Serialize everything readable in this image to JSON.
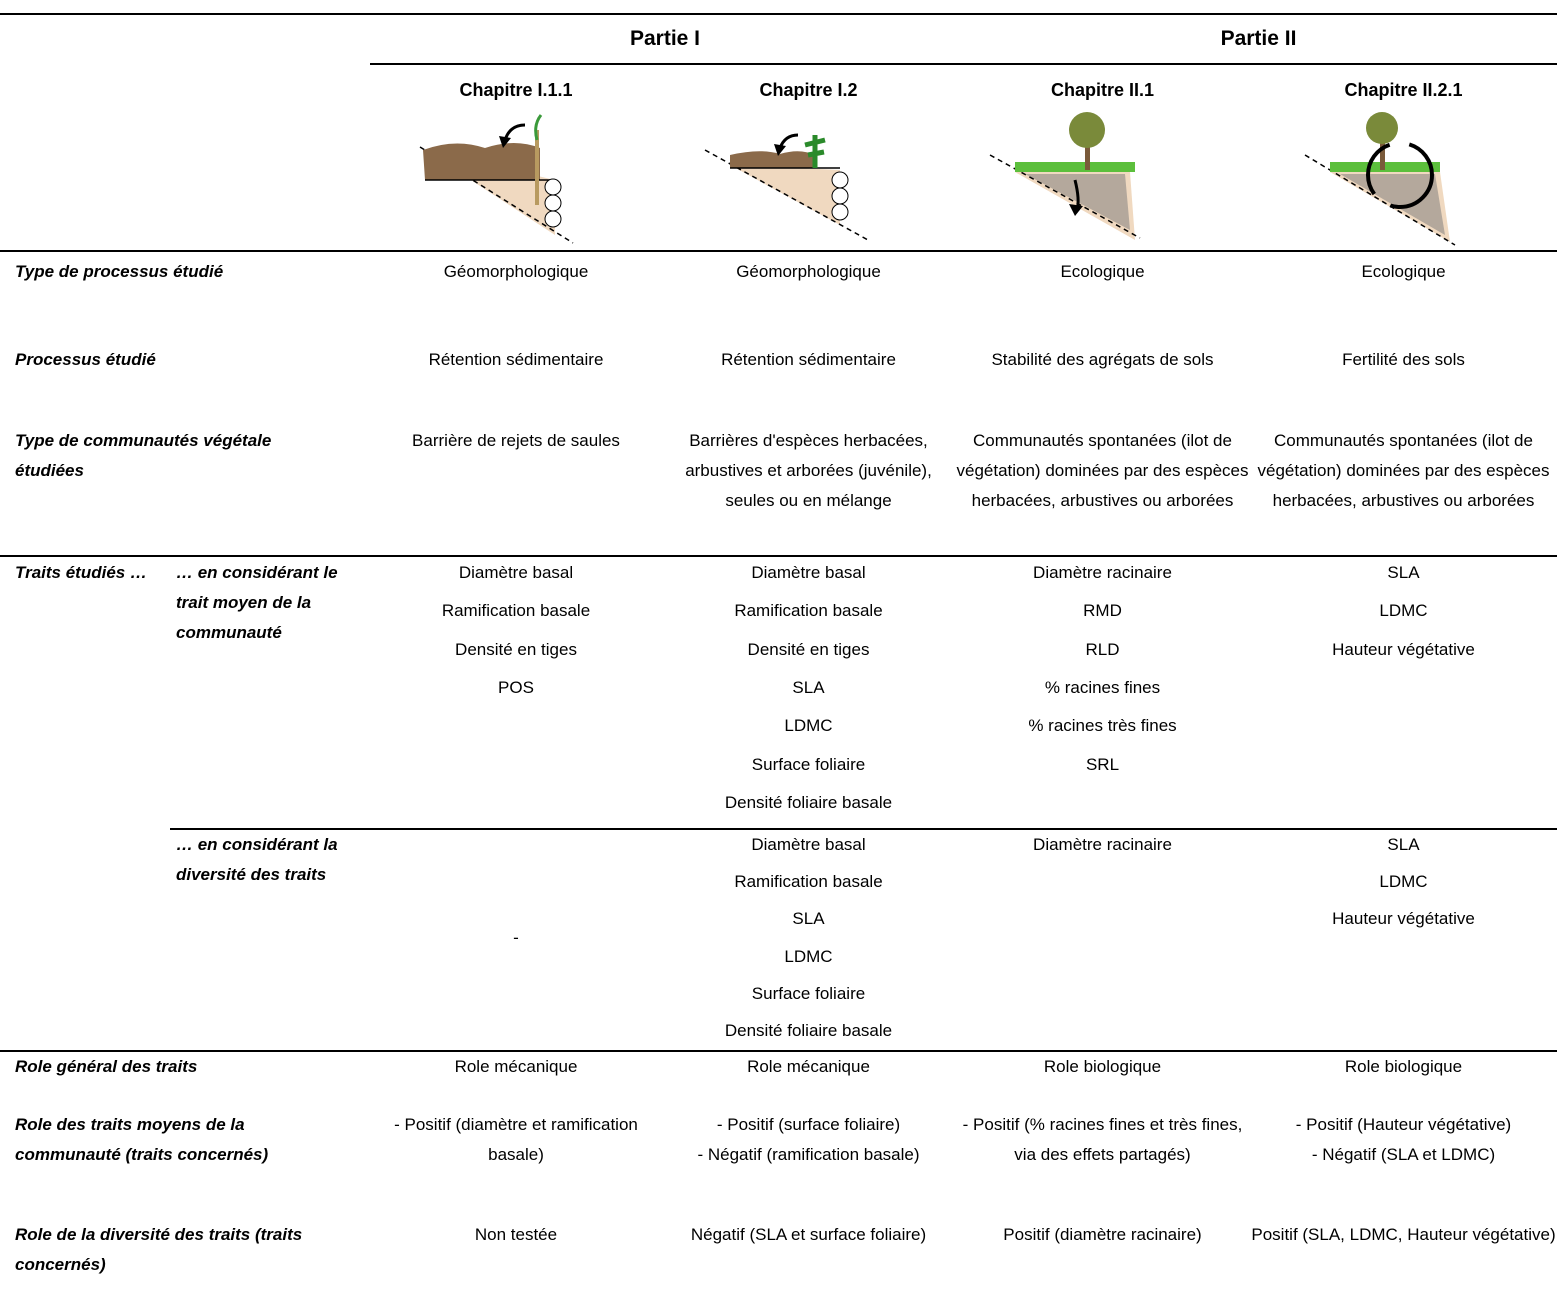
{
  "header": {
    "parts": [
      "Partie I",
      "Partie II"
    ],
    "chapters": [
      "Chapitre I.1.1",
      "Chapitre I.2",
      "Chapitre II.1",
      "Chapitre II.2.1"
    ]
  },
  "rows": [
    {
      "label": "Type de processus étudié",
      "cells": [
        "Géomorphologique",
        "Géomorphologique",
        "Ecologique",
        "Ecologique"
      ]
    },
    {
      "label": "Processus étudié",
      "cells": [
        "Rétention sédimentaire",
        "Rétention sédimentaire",
        "Stabilité des agrégats de sols",
        "Fertilité des sols"
      ]
    },
    {
      "label": "Type de communautés végétale étudiées",
      "cells": [
        "Barrière de rejets de saules",
        "Barrières d'espèces herbacées, arbustives et arborées (juvénile), seules ou en mélange",
        "Communautés spontanées (ilot de végétation) dominées par des espèces herbacées, arbustives ou arborées",
        "Communautés spontanées (ilot de végétation) dominées par des espèces herbacées, arbustives ou arborées"
      ]
    }
  ],
  "traits": {
    "label": "Traits étudiés …",
    "groups": [
      {
        "label": "… en considérant le trait moyen de la communauté",
        "cells": [
          [
            "Diamètre basal",
            "Ramification basale",
            "Densité en tiges",
            "POS"
          ],
          [
            "Diamètre basal",
            "Ramification basale",
            "Densité en tiges",
            "SLA",
            "LDMC",
            "Surface foliaire",
            "Densité foliaire basale"
          ],
          [
            "Diamètre racinaire",
            "RMD",
            "RLD",
            "% racines fines",
            "% racines très fines",
            "SRL"
          ],
          [
            "SLA",
            "LDMC",
            "Hauteur végétative"
          ]
        ]
      },
      {
        "label": "… en considérant la diversité des traits",
        "cells": [
          [
            "-"
          ],
          [
            "Diamètre basal",
            "Ramification basale",
            "SLA",
            "LDMC",
            "Surface foliaire",
            "Densité foliaire basale"
          ],
          [
            "Diamètre racinaire"
          ],
          [
            "SLA",
            "LDMC",
            "Hauteur végétative"
          ]
        ]
      }
    ]
  },
  "roles": [
    {
      "label": "Role général des traits",
      "cells": [
        "Role mécanique",
        "Role mécanique",
        "Role biologique",
        "Role biologique"
      ]
    },
    {
      "label": "Role des traits moyens de la communauté (traits concernés)",
      "cells": [
        "- Positif (diamètre et ramification basale)",
        "- Positif (surface foliaire)\n- Négatif (ramification basale)",
        "- Positif (% racines fines et très fines, via des effets partagés)",
        "- Positif (Hauteur végétative)\n- Négatif (SLA et LDMC)"
      ]
    },
    {
      "label": "Role de la diversité des traits (traits concernés)",
      "cells": [
        "Non testée",
        "Négatif (SLA et surface foliaire)",
        "Positif (diamètre racinaire)",
        "Positif (SLA, LDMC, Hauteur végétative)"
      ]
    }
  ]
}
